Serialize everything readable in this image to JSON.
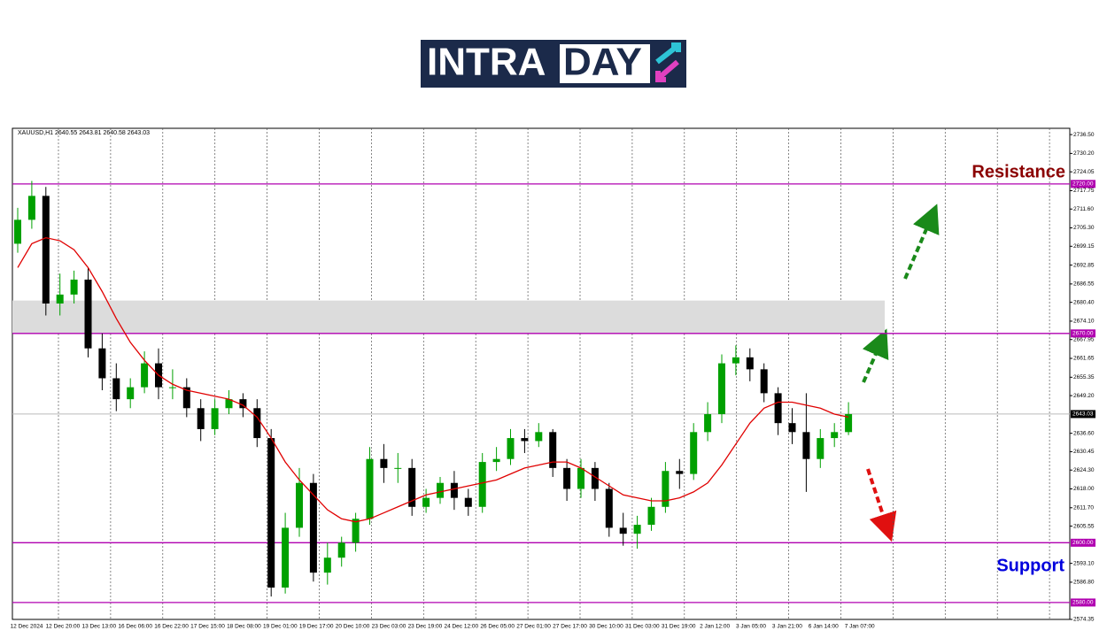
{
  "logo_text": [
    "INTRA",
    "DAY"
  ],
  "chart_data": {
    "type": "candlestick",
    "symbol_info": "XAUUSD,H1  2640.55 2643.81 2640.58 2643.03",
    "up_color": "#00a000",
    "down_color": "#000000",
    "open": [
      2700,
      2708,
      2716,
      2680,
      2683,
      2688,
      2665,
      2655,
      2648,
      2652,
      2660,
      2652,
      2652,
      2645,
      2638,
      2645,
      2648,
      2645,
      2635,
      2585,
      2605,
      2620,
      2590,
      2595,
      2600,
      2608,
      2628,
      2625,
      2625,
      2612,
      2615,
      2620,
      2615,
      2612,
      2627,
      2628,
      2635,
      2634,
      2637,
      2625,
      2618,
      2625,
      2618,
      2605,
      2603,
      2606,
      2612,
      2624,
      2623,
      2637,
      2643,
      2660,
      2662,
      2658,
      2650,
      2640,
      2637,
      2628,
      2635,
      2637
    ],
    "high": [
      2712,
      2721,
      2719,
      2690,
      2691,
      2692,
      2670,
      2660,
      2655,
      2664,
      2665,
      2658,
      2655,
      2648,
      2648,
      2651,
      2650,
      2648,
      2638,
      2610,
      2625,
      2623,
      2600,
      2602,
      2610,
      2632,
      2633,
      2630,
      2628,
      2618,
      2622,
      2624,
      2618,
      2630,
      2632,
      2638,
      2638,
      2640,
      2638,
      2628,
      2628,
      2627,
      2620,
      2610,
      2609,
      2615,
      2627,
      2628,
      2640,
      2647,
      2663,
      2666,
      2665,
      2660,
      2652,
      2645,
      2650,
      2638,
      2640,
      2647
    ],
    "low": [
      2697,
      2705,
      2676,
      2676,
      2680,
      2662,
      2651,
      2644,
      2645,
      2650,
      2648,
      2648,
      2642,
      2634,
      2636,
      2643,
      2642,
      2632,
      2582,
      2583,
      2602,
      2587,
      2586,
      2592,
      2597,
      2606,
      2620,
      2620,
      2609,
      2610,
      2613,
      2611,
      2609,
      2610,
      2624,
      2626,
      2630,
      2632,
      2622,
      2614,
      2615,
      2614,
      2602,
      2599,
      2598,
      2604,
      2610,
      2618,
      2621,
      2634,
      2640,
      2656,
      2654,
      2647,
      2636,
      2633,
      2617,
      2625,
      2632,
      2636
    ],
    "close": [
      2708,
      2716,
      2680,
      2683,
      2688,
      2665,
      2655,
      2648,
      2652,
      2660,
      2652,
      2652,
      2645,
      2638,
      2645,
      2648,
      2645,
      2635,
      2585,
      2605,
      2620,
      2590,
      2595,
      2600,
      2608,
      2628,
      2625,
      2625,
      2612,
      2615,
      2620,
      2615,
      2612,
      2627,
      2628,
      2635,
      2634,
      2637,
      2625,
      2618,
      2625,
      2618,
      2605,
      2603,
      2606,
      2612,
      2624,
      2623,
      2637,
      2643,
      2660,
      2662,
      2658,
      2650,
      2640,
      2637,
      2628,
      2635,
      2637,
      2643.03
    ],
    "ma": {
      "color": "#e00000",
      "values": [
        2692,
        2700,
        2702,
        2701,
        2698,
        2692,
        2684,
        2675,
        2667,
        2661,
        2656,
        2653,
        2651,
        2650,
        2649,
        2648,
        2646,
        2642,
        2635,
        2627,
        2621,
        2616,
        2611,
        2608,
        2607,
        2608,
        2610,
        2612,
        2614,
        2616,
        2617,
        2618,
        2619,
        2620,
        2621,
        2623,
        2625,
        2626,
        2627,
        2627,
        2625,
        2622,
        2619,
        2616,
        2615,
        2614,
        2614,
        2615,
        2617,
        2620,
        2626,
        2633,
        2640,
        2645,
        2647,
        2647,
        2646,
        2645,
        2643,
        2642
      ]
    },
    "x_labels": [
      "12 Dec 2024",
      "12 Dec 20:00",
      "13 Dec 13:00",
      "16 Dec 06:00",
      "16 Dec 22:00",
      "17 Dec 15:00",
      "18 Dec 08:00",
      "19 Dec 01:00",
      "19 Dec 17:00",
      "20 Dec 10:00",
      "23 Dec 03:00",
      "23 Dec 19:00",
      "24 Dec 12:00",
      "26 Dec 05:00",
      "27 Dec 01:00",
      "27 Dec 17:00",
      "30 Dec 10:00",
      "31 Dec 03:00",
      "31 Dec 19:00",
      "2 Jan 12:00",
      "3 Jan 05:00",
      "3 Jan 21:00",
      "6 Jan 14:00",
      "7 Jan 07:00"
    ],
    "ylim": [
      2574.35,
      2738.6
    ],
    "yticks": [
      {
        "value": 2736.5,
        "label": "2736.50"
      },
      {
        "value": 2730.2,
        "label": "2730.20"
      },
      {
        "value": 2724.05,
        "label": "2724.05"
      },
      {
        "value": 2717.75,
        "label": "2717.75"
      },
      {
        "value": 2711.6,
        "label": "2711.60"
      },
      {
        "value": 2705.3,
        "label": "2705.30"
      },
      {
        "value": 2699.15,
        "label": "2699.15"
      },
      {
        "value": 2692.85,
        "label": "2692.85"
      },
      {
        "value": 2686.55,
        "label": "2686.55"
      },
      {
        "value": 2680.4,
        "label": "2680.40"
      },
      {
        "value": 2674.1,
        "label": "2674.10"
      },
      {
        "value": 2667.95,
        "label": "2667.95"
      },
      {
        "value": 2661.65,
        "label": "2661.65"
      },
      {
        "value": 2655.35,
        "label": "2655.35"
      },
      {
        "value": 2649.2,
        "label": "2649.20"
      },
      {
        "value": 2636.6,
        "label": "2636.60"
      },
      {
        "value": 2630.45,
        "label": "2630.45"
      },
      {
        "value": 2624.3,
        "label": "2624.30"
      },
      {
        "value": 2618,
        "label": "2618.00"
      },
      {
        "value": 2611.7,
        "label": "2611.70"
      },
      {
        "value": 2605.55,
        "label": "2605.55"
      },
      {
        "value": 2593.1,
        "label": "2593.10"
      },
      {
        "value": 2586.8,
        "label": "2586.80"
      },
      {
        "value": 2574.35,
        "label": "2574.35"
      }
    ],
    "levels": [
      {
        "value": 2720,
        "label": "2720.00"
      },
      {
        "value": 2670,
        "label": "2670.00"
      },
      {
        "value": 2600,
        "label": "2600.00"
      },
      {
        "value": 2580,
        "label": "2580.00"
      }
    ],
    "level_color": "#b000b0",
    "last_price": {
      "value": 2643.03,
      "label": "2643.03"
    },
    "zone": [
      2670,
      2681
    ],
    "resistance_label": "Resistance",
    "support_label": "Support"
  }
}
